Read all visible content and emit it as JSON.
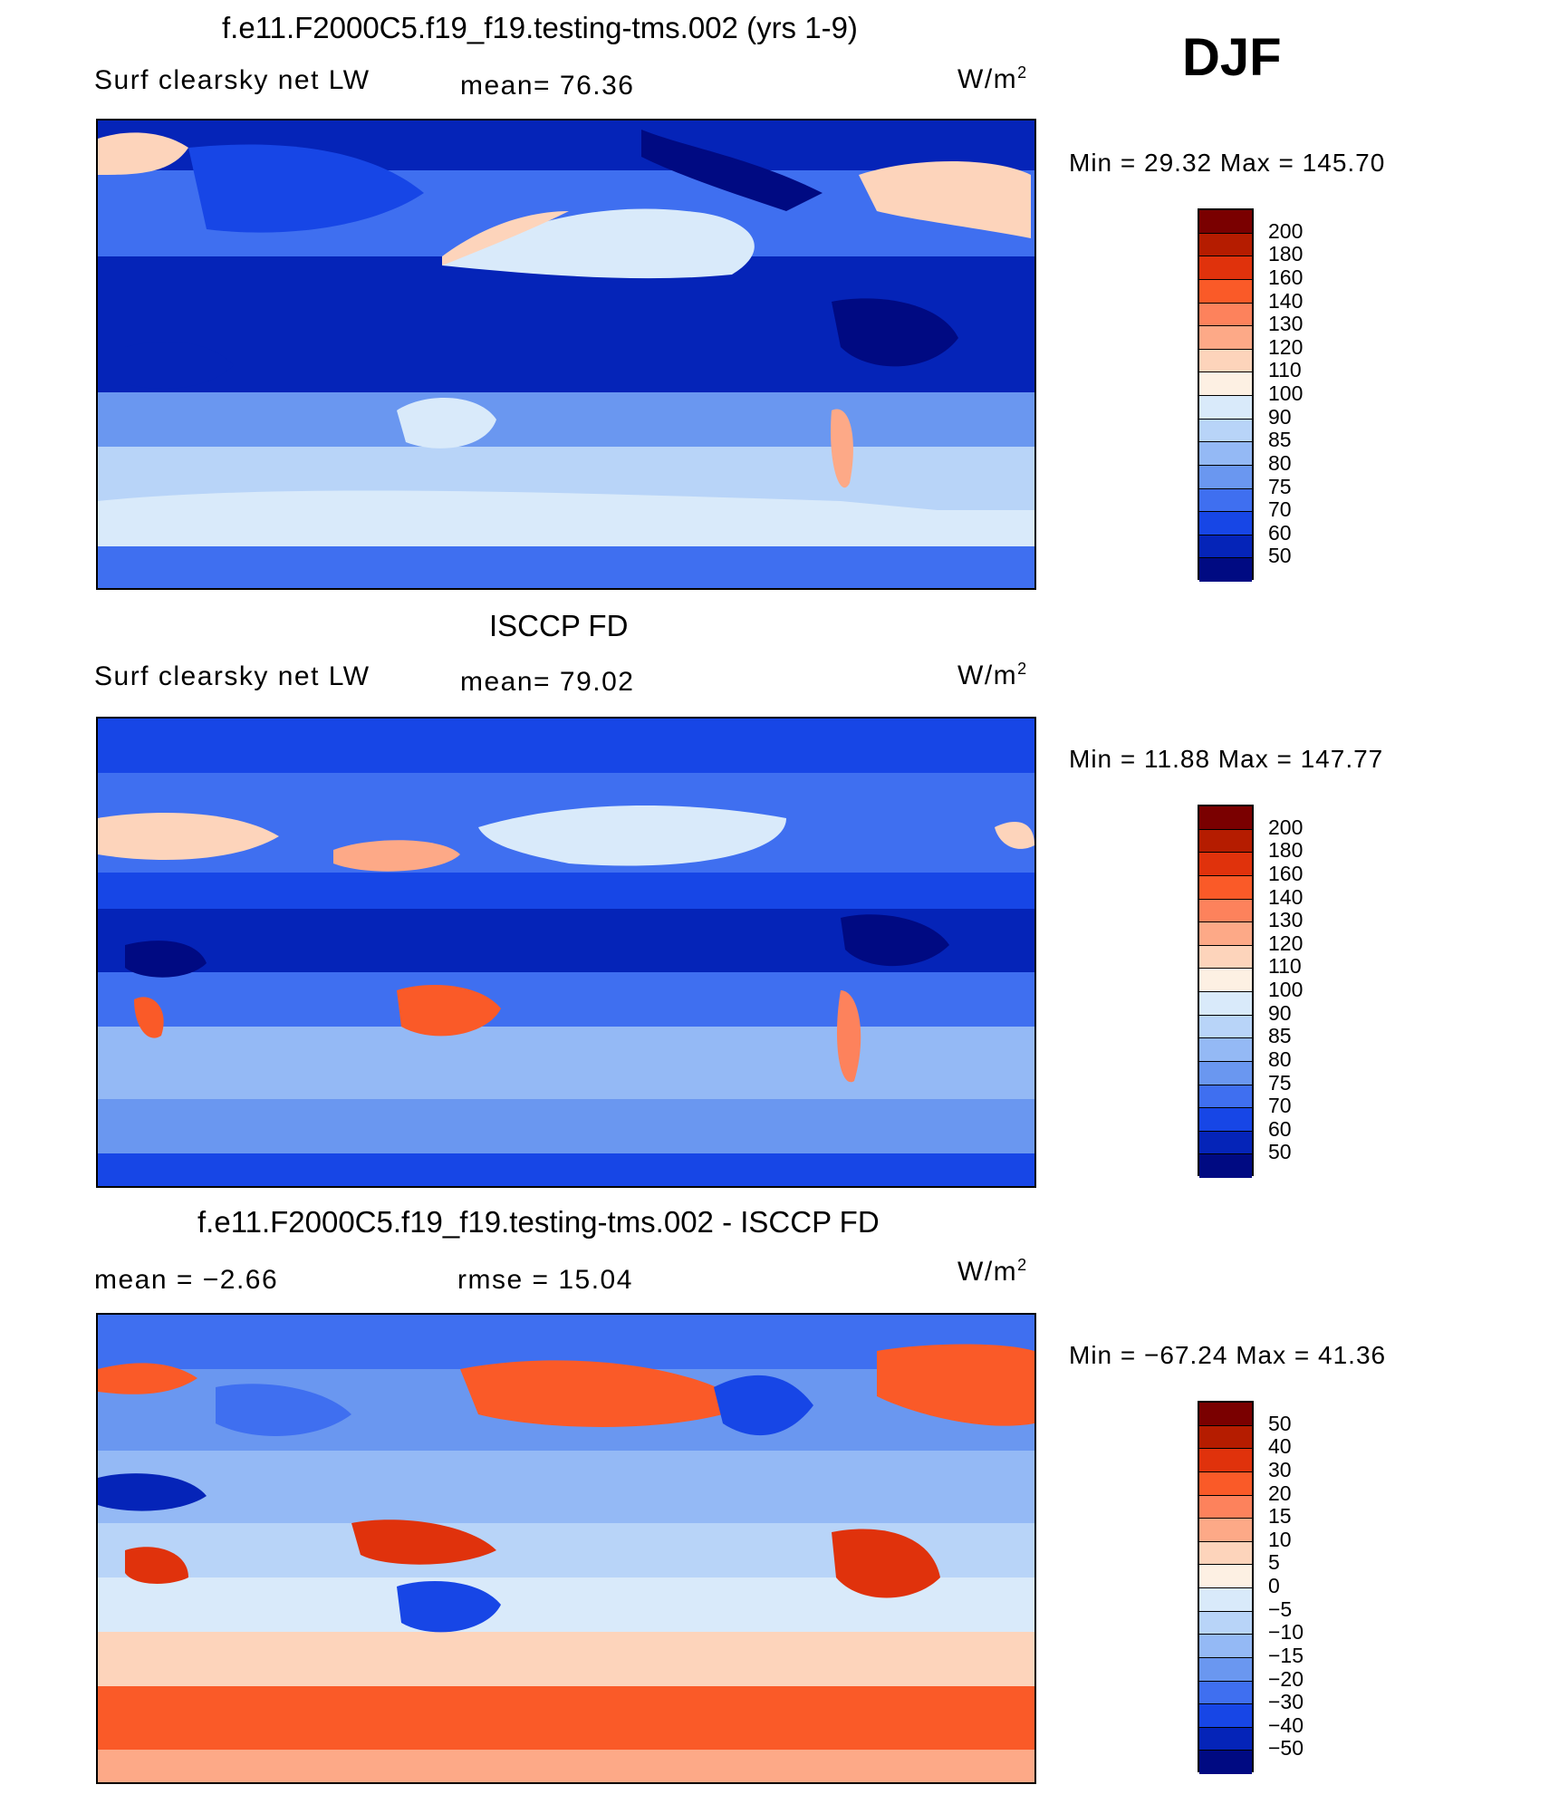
{
  "figure": {
    "season": "DJF",
    "unit_base": "W/m",
    "unit_exp": "2"
  },
  "panels": [
    {
      "title": "f.e11.F2000C5.f19_f19.testing-tms.002 (yrs 1-9)",
      "variable": "Surf clearsky net LW",
      "stat1": "mean=   76.36",
      "stat2": "",
      "minmax": "Min =   29.32  Max  =  145.70",
      "colorbar": {
        "labels": [
          "200",
          "180",
          "160",
          "140",
          "130",
          "120",
          "110",
          "100",
          "90",
          "85",
          "80",
          "75",
          "70",
          "60",
          "50"
        ],
        "colors": [
          "#7a0000",
          "#b51c00",
          "#e0320c",
          "#fa5a28",
          "#fd825c",
          "#fda987",
          "#fdd4bb",
          "#fdf0e3",
          "#d9eafa",
          "#b8d4f8",
          "#94b9f5",
          "#6a97f0",
          "#3f6ff0",
          "#1746e6",
          "#0524b8",
          "#000a82"
        ]
      }
    },
    {
      "title": "ISCCP FD",
      "variable": "Surf clearsky net LW",
      "stat1": "mean=   79.02",
      "stat2": "",
      "minmax": "Min =   11.88  Max  =  147.77",
      "colorbar": {
        "labels": [
          "200",
          "180",
          "160",
          "140",
          "130",
          "120",
          "110",
          "100",
          "90",
          "85",
          "80",
          "75",
          "70",
          "60",
          "50"
        ],
        "colors": [
          "#7a0000",
          "#b51c00",
          "#e0320c",
          "#fa5a28",
          "#fd825c",
          "#fda987",
          "#fdd4bb",
          "#fdf0e3",
          "#d9eafa",
          "#b8d4f8",
          "#94b9f5",
          "#6a97f0",
          "#3f6ff0",
          "#1746e6",
          "#0524b8",
          "#000a82"
        ]
      }
    },
    {
      "title": "f.e11.F2000C5.f19_f19.testing-tms.002 - ISCCP FD",
      "variable": "",
      "stat1": "mean =    −2.66",
      "stat2": "rmse =    15.04",
      "minmax": "Min  =  −67.24  Max  =    41.36",
      "colorbar": {
        "labels": [
          "50",
          "40",
          "30",
          "20",
          "15",
          "10",
          "5",
          "0",
          "−5",
          "−10",
          "−15",
          "−20",
          "−30",
          "−40",
          "−50"
        ],
        "colors": [
          "#7a0000",
          "#b51c00",
          "#e0320c",
          "#fa5a28",
          "#fd825c",
          "#fda987",
          "#fdd4bb",
          "#fdf0e3",
          "#d9eafa",
          "#b8d4f8",
          "#94b9f5",
          "#6a97f0",
          "#3f6ff0",
          "#1746e6",
          "#0524b8",
          "#000a82"
        ]
      }
    }
  ],
  "chart_data": [
    {
      "type": "heatmap",
      "title": "f.e11.F2000C5.f19_f19.testing-tms.002 (yrs 1-9)",
      "subtitle": "Surf clearsky net LW",
      "units": "W/m2",
      "mean": 76.36,
      "min": 29.32,
      "max": 145.7,
      "levels": [
        50,
        60,
        70,
        75,
        80,
        85,
        90,
        100,
        110,
        120,
        130,
        140,
        160,
        180,
        200
      ]
    },
    {
      "type": "heatmap",
      "title": "ISCCP FD",
      "subtitle": "Surf clearsky net LW",
      "units": "W/m2",
      "mean": 79.02,
      "min": 11.88,
      "max": 147.77,
      "levels": [
        50,
        60,
        70,
        75,
        80,
        85,
        90,
        100,
        110,
        120,
        130,
        140,
        160,
        180,
        200
      ]
    },
    {
      "type": "heatmap",
      "title": "f.e11.F2000C5.f19_f19.testing-tms.002 - ISCCP FD",
      "units": "W/m2",
      "mean": -2.66,
      "rmse": 15.04,
      "min": -67.24,
      "max": 41.36,
      "levels": [
        -50,
        -40,
        -30,
        -20,
        -15,
        -10,
        -5,
        0,
        5,
        10,
        15,
        20,
        30,
        40,
        50
      ]
    }
  ]
}
